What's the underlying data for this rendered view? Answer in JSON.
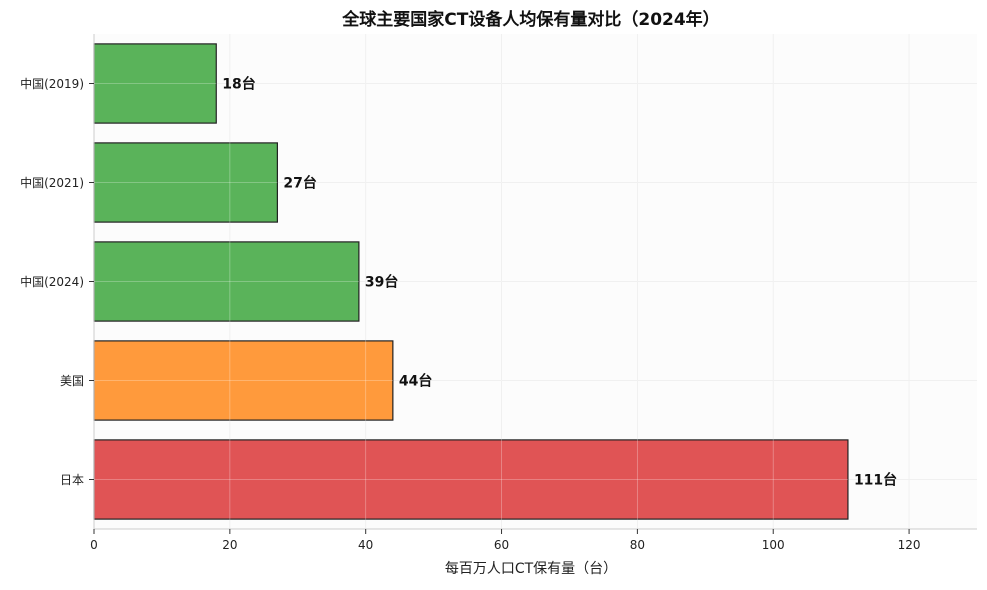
{
  "chart_data": {
    "type": "bar",
    "orientation": "horizontal",
    "title": "全球主要国家CT设备人均保有量对比（2024年）",
    "xlabel": "每百万人口CT保有量（台）",
    "ylabel": "",
    "xlim": [
      0,
      130
    ],
    "xticks": [
      0,
      20,
      40,
      60,
      80,
      100,
      120
    ],
    "grid": true,
    "categories": [
      "中国(2019)",
      "中国(2021)",
      "中国(2024)",
      "美国",
      "日本"
    ],
    "values": [
      18,
      27,
      39,
      44,
      111
    ],
    "value_suffix": "台",
    "colors": [
      "#5ab35a",
      "#5ab35a",
      "#5ab35a",
      "#ff9a3c",
      "#e05455"
    ]
  }
}
